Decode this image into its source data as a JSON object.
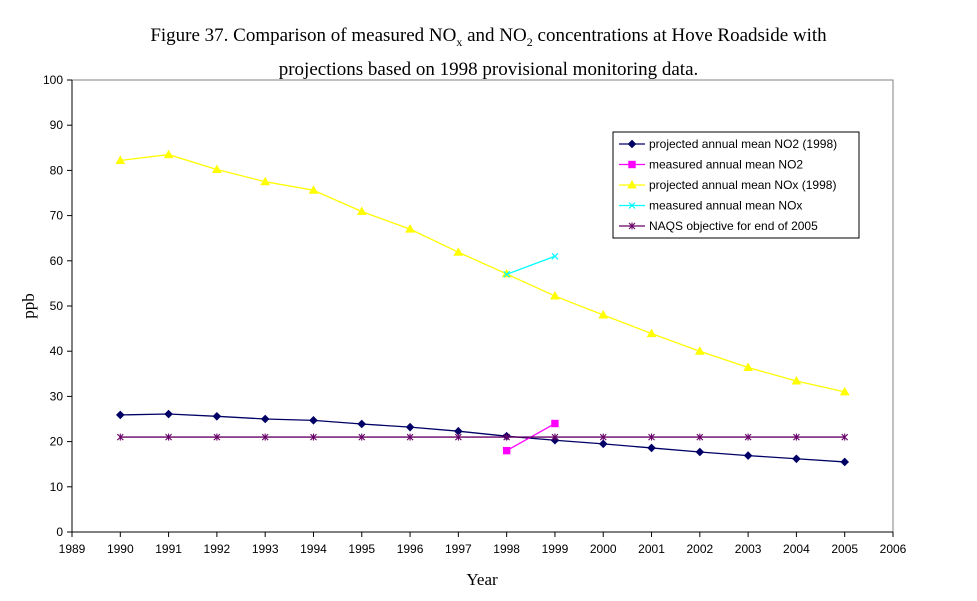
{
  "chart_data": {
    "type": "line",
    "title": {
      "line1_a": "Figure 37. Comparison of measured NO",
      "line1_sub1": "x",
      "line1_b": " and NO",
      "line1_sub2": "2",
      "line1_c": " concentrations at Hove Roadside with",
      "line2": "projections based on 1998 provisional monitoring data."
    },
    "xlabel": "Year",
    "ylabel": "ppb",
    "xlim": [
      1989,
      2006
    ],
    "ylim": [
      0,
      100
    ],
    "xticks": [
      1989,
      1990,
      1991,
      1992,
      1993,
      1994,
      1995,
      1996,
      1997,
      1998,
      1999,
      2000,
      2001,
      2002,
      2003,
      2004,
      2005,
      2006
    ],
    "yticks": [
      0,
      10,
      20,
      30,
      40,
      50,
      60,
      70,
      80,
      90,
      100
    ],
    "grid": false,
    "legend_position": "top-right",
    "series": [
      {
        "name": "projected annual mean NO2 (1998)",
        "color": "#000066",
        "marker": "diamond",
        "x": [
          1990,
          1991,
          1992,
          1993,
          1994,
          1995,
          1996,
          1997,
          1998,
          1999,
          2000,
          2001,
          2002,
          2003,
          2004,
          2005
        ],
        "y": [
          25.9,
          26.1,
          25.6,
          25.0,
          24.7,
          23.9,
          23.2,
          22.3,
          21.2,
          20.3,
          19.5,
          18.6,
          17.7,
          16.9,
          16.2,
          15.5
        ]
      },
      {
        "name": "measured annual mean NO2",
        "color": "#ff00ff",
        "marker": "square",
        "x": [
          1998,
          1999
        ],
        "y": [
          18,
          24
        ]
      },
      {
        "name": "projected annual mean NOx (1998)",
        "color": "#ffff00",
        "marker": "triangle",
        "x": [
          1990,
          1991,
          1992,
          1993,
          1994,
          1995,
          1996,
          1997,
          1998,
          1999,
          2000,
          2001,
          2002,
          2003,
          2004,
          2005
        ],
        "y": [
          82.2,
          83.5,
          80.2,
          77.5,
          75.6,
          70.9,
          67.0,
          61.9,
          57.1,
          52.2,
          48.0,
          43.9,
          40.0,
          36.4,
          33.4,
          31.0
        ]
      },
      {
        "name": "measured annual mean NOx",
        "color": "#00ffff",
        "marker": "x",
        "x": [
          1998,
          1999
        ],
        "y": [
          57,
          61
        ]
      },
      {
        "name": "NAQS objective for end of 2005",
        "color": "#660066",
        "marker": "star",
        "x": [
          1990,
          1991,
          1992,
          1993,
          1994,
          1995,
          1996,
          1997,
          1998,
          1999,
          2000,
          2001,
          2002,
          2003,
          2004,
          2005
        ],
        "y": [
          21,
          21,
          21,
          21,
          21,
          21,
          21,
          21,
          21,
          21,
          21,
          21,
          21,
          21,
          21,
          21
        ]
      }
    ]
  }
}
